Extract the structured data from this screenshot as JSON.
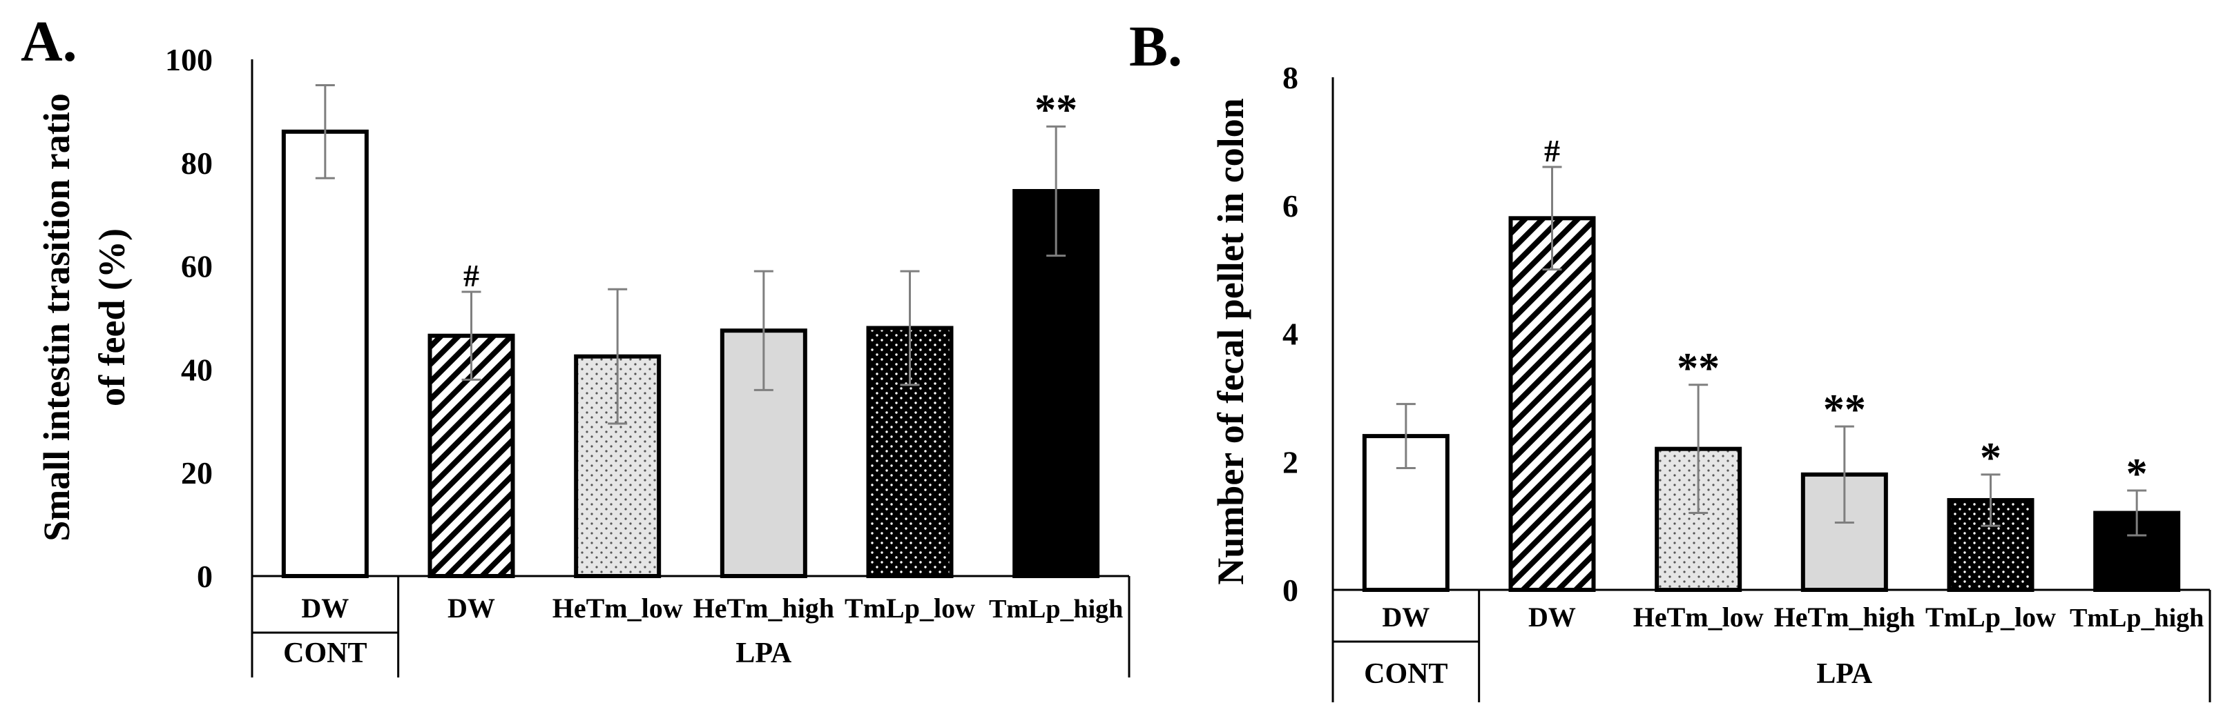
{
  "chart_data": [
    {
      "panel": "A.",
      "type": "bar",
      "ylabel": "Small intestin trasition ratio of feed (%)",
      "ylabel_lines": [
        "Small intestin trasition ratio",
        "of feed (%)"
      ],
      "ylim": [
        0,
        100
      ],
      "yticks": [
        0,
        20,
        40,
        60,
        80,
        100
      ],
      "grid": false,
      "categories": [
        "DW",
        "DW",
        "HeTm_low",
        "HeTm_high",
        "TmLp_low",
        "TmLp_high"
      ],
      "groups": [
        {
          "label": "CONT",
          "count": 1
        },
        {
          "label": "LPA",
          "count": 5
        }
      ],
      "values": [
        86,
        46.5,
        42.5,
        47.5,
        48,
        74.5
      ],
      "errors": [
        9,
        8.5,
        13,
        11.5,
        11,
        12.5
      ],
      "annotations": [
        "",
        "#",
        "",
        "",
        "",
        "**"
      ],
      "fills": [
        "white",
        "hatch",
        "dots",
        "light-gray",
        "dark-dots",
        "black"
      ]
    },
    {
      "panel": "B.",
      "type": "bar",
      "ylabel": "Number of fecal pellet in colon",
      "ylabel_lines": [
        "Number of fecal pellet in colon"
      ],
      "ylim": [
        0,
        8
      ],
      "yticks": [
        0,
        2,
        4,
        6,
        8
      ],
      "grid": false,
      "categories": [
        "DW",
        "DW",
        "HeTm_low",
        "HeTm_high",
        "TmLp_low",
        "TmLp_high"
      ],
      "groups": [
        {
          "label": "CONT",
          "count": 1
        },
        {
          "label": "LPA",
          "count": 5
        }
      ],
      "values": [
        2.4,
        5.8,
        2.2,
        1.8,
        1.4,
        1.2
      ],
      "errors": [
        0.5,
        0.8,
        1.0,
        0.75,
        0.4,
        0.35
      ],
      "annotations": [
        "",
        "#",
        "**",
        "**",
        "*",
        "*"
      ],
      "fills": [
        "white",
        "hatch",
        "dots",
        "light-gray",
        "dark-dots",
        "black"
      ]
    }
  ]
}
